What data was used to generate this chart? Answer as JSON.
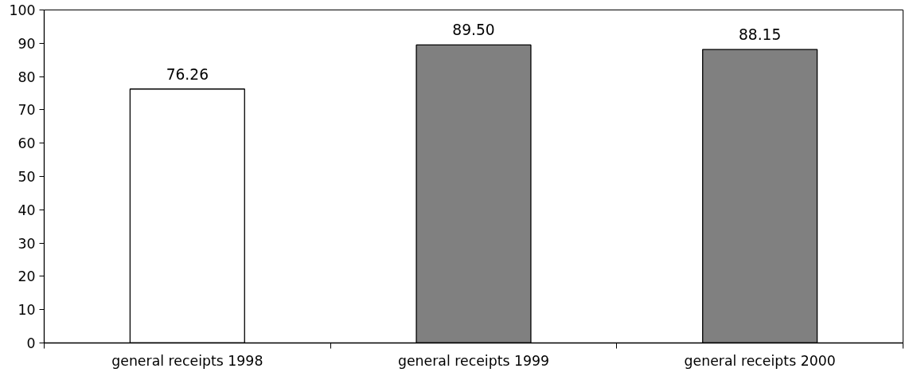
{
  "chart_data": {
    "type": "bar",
    "categories": [
      "general receipts 1998",
      "general receipts 1999",
      "general receipts 2000"
    ],
    "values": [
      76.26,
      89.5,
      88.15
    ],
    "colors": [
      "#ffffff",
      "#808080",
      "#808080"
    ],
    "value_labels": [
      "76.26",
      "89.50",
      "88.15"
    ],
    "ylim": [
      0,
      100
    ],
    "yticks": [
      0,
      10,
      20,
      30,
      40,
      50,
      60,
      70,
      80,
      90,
      100
    ],
    "grid": false
  }
}
